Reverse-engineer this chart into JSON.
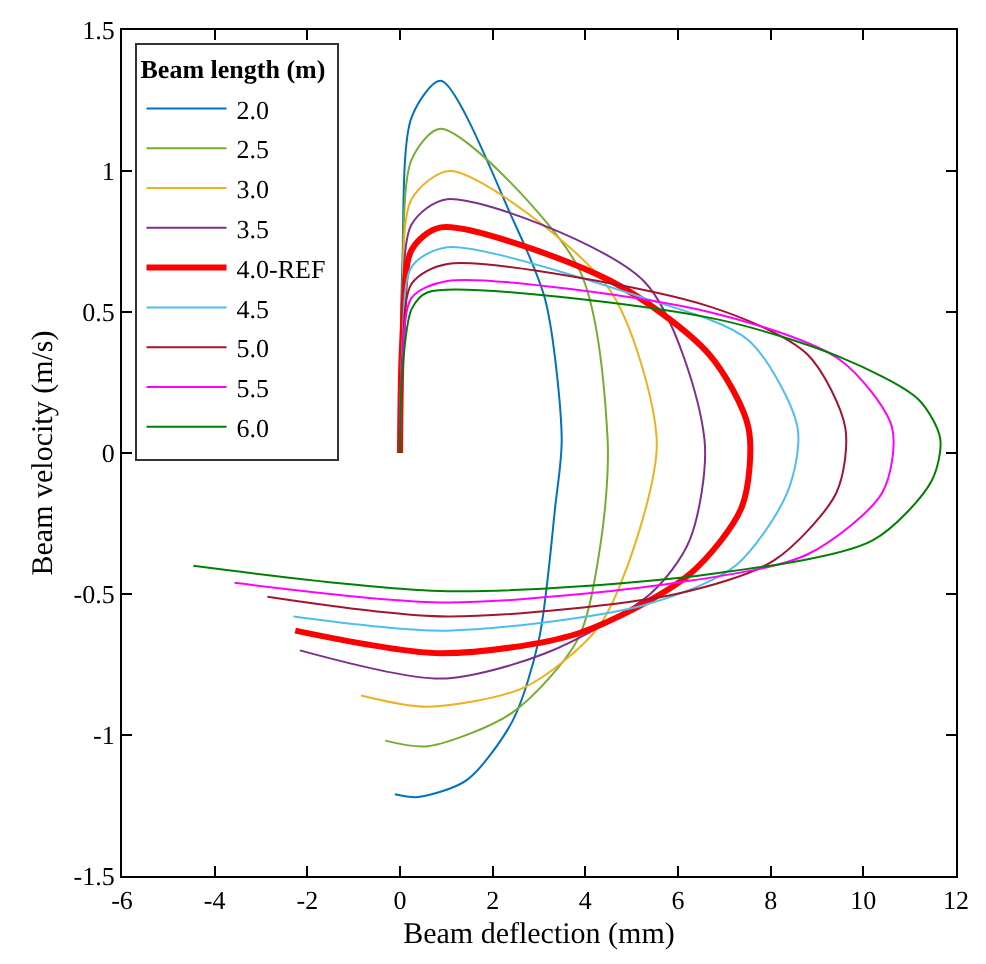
{
  "chart_data": {
    "type": "line",
    "xlabel": "Beam deflection (mm)",
    "ylabel": "Beam velocity (m/s)",
    "legend_title": "Beam length (m)",
    "legend": "top left",
    "xlim": [
      -6,
      12
    ],
    "xticks": [
      -6,
      -4,
      -2,
      0,
      2,
      4,
      6,
      8,
      10,
      12
    ],
    "ylim": [
      -1.5,
      1.5
    ],
    "yticks": [
      -1.5,
      -1,
      -0.5,
      0,
      0.5,
      1,
      1.5
    ],
    "series": [
      {
        "name": "2.0",
        "color": "#0072bd",
        "x": [
          0,
          0.05,
          0.25,
          0.88,
          2.43,
          3.14,
          3.49,
          3.35,
          3.0,
          2.43,
          1.44,
          0.39,
          -0.11
        ],
        "values": [
          0,
          0.66,
          1.19,
          1.32,
          0.83,
          0.54,
          0.05,
          -0.19,
          -0.66,
          -0.95,
          -1.16,
          -1.22,
          -1.21
        ]
      },
      {
        "name": "2.5",
        "color": "#77ac30",
        "x": [
          0,
          0.05,
          0.25,
          0.88,
          3.84,
          4.48,
          4.34,
          3.84,
          2.43,
          0.6,
          -0.32
        ],
        "values": [
          0,
          0.58,
          1.04,
          1.15,
          0.66,
          0.05,
          -0.31,
          -0.66,
          -0.92,
          -1.04,
          -1.02
        ]
      },
      {
        "name": "3.0",
        "color": "#edb120",
        "x": [
          0,
          0.05,
          0.25,
          1.09,
          4.48,
          5.54,
          5.1,
          4.27,
          2.7,
          0.6,
          -0.84
        ],
        "values": [
          0,
          0.5,
          0.9,
          1.0,
          0.59,
          0.05,
          -0.31,
          -0.62,
          -0.83,
          -0.9,
          -0.86
        ]
      },
      {
        "name": "3.5",
        "color": "#7e2f8e",
        "x": [
          0,
          0.05,
          0.25,
          1.02,
          5.26,
          6.57,
          6.25,
          5.4,
          3.14,
          0.88,
          -2.16
        ],
        "values": [
          0,
          0.45,
          0.81,
          0.9,
          0.61,
          0.05,
          -0.31,
          -0.5,
          -0.71,
          -0.8,
          -0.7
        ]
      },
      {
        "name": "4.0-REF",
        "color": "#ff0000",
        "x": [
          0,
          0.05,
          0.25,
          0.88,
          4.55,
          6.67,
          7.52,
          7.38,
          6.25,
          3.84,
          0.88,
          -2.26
        ],
        "values": [
          0,
          0.4,
          0.72,
          0.8,
          0.61,
          0.35,
          0.09,
          -0.19,
          -0.43,
          -0.64,
          -0.71,
          -0.63
        ]
      },
      {
        "name": "4.5",
        "color": "#4dbeee",
        "x": [
          0,
          0.05,
          0.25,
          1.02,
          5.26,
          7.52,
          8.58,
          8.36,
          7.24,
          5.26,
          1.02,
          -2.3
        ],
        "values": [
          0,
          0.37,
          0.66,
          0.73,
          0.55,
          0.4,
          0.09,
          -0.14,
          -0.4,
          -0.54,
          -0.63,
          -0.58
        ]
      },
      {
        "name": "5.0",
        "color": "#a2142f",
        "x": [
          0,
          0.05,
          0.25,
          1.02,
          6.67,
          8.79,
          9.61,
          9.42,
          8.08,
          5.96,
          1.02,
          -2.86
        ],
        "values": [
          0,
          0.34,
          0.6,
          0.67,
          0.52,
          0.35,
          0.09,
          -0.14,
          -0.38,
          -0.5,
          -0.58,
          -0.51
        ]
      },
      {
        "name": "5.5",
        "color": "#ff00ff",
        "x": [
          0,
          0.05,
          0.25,
          1.02,
          6.67,
          9.5,
          10.62,
          10.41,
          8.79,
          5.96,
          1.02,
          -3.57
        ],
        "values": [
          0,
          0.31,
          0.55,
          0.61,
          0.5,
          0.33,
          0.09,
          -0.14,
          -0.36,
          -0.46,
          -0.53,
          -0.46
        ]
      },
      {
        "name": "6.0",
        "color": "#008000",
        "x": [
          0,
          0.05,
          0.25,
          0.6,
          6.67,
          9.5,
          11.19,
          11.66,
          11.47,
          10.2,
          6.67,
          1.02,
          -4.46
        ],
        "values": [
          0,
          0.29,
          0.51,
          0.57,
          0.48,
          0.34,
          0.19,
          0.05,
          -0.1,
          -0.31,
          -0.43,
          -0.49,
          -0.4
        ]
      }
    ]
  }
}
